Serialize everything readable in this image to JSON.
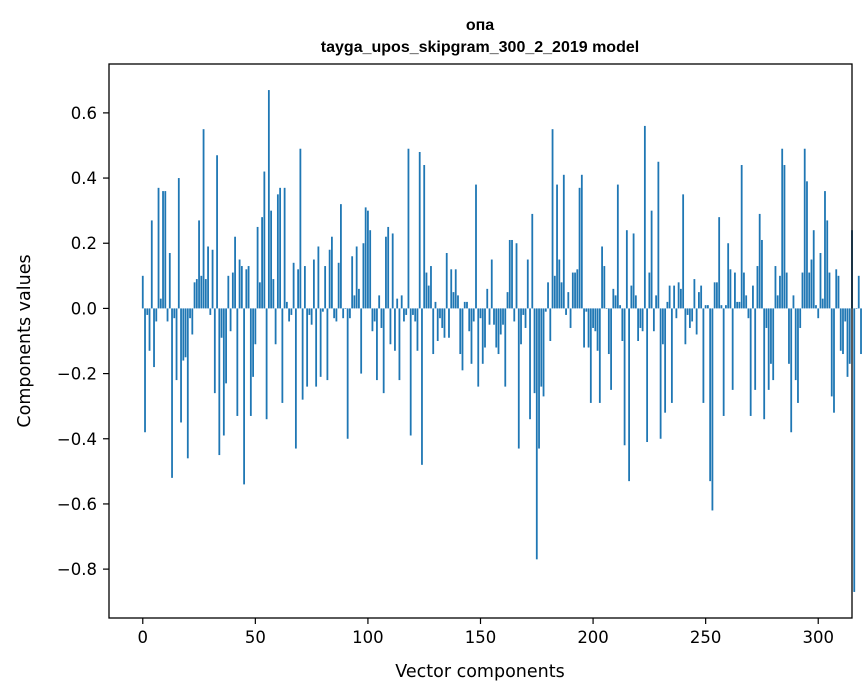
{
  "chart_data": {
    "type": "bar",
    "title": "опа",
    "subtitle": "tayga_upos_skipgram_300_2_2019 model",
    "xlabel": "Vector components",
    "ylabel": "Components values",
    "xlim": [
      -15,
      315
    ],
    "ylim": [
      -0.95,
      0.75
    ],
    "xticks": [
      0,
      50,
      100,
      150,
      200,
      250,
      300
    ],
    "xtick_labels": [
      "0",
      "50",
      "100",
      "150",
      "200",
      "250",
      "300"
    ],
    "yticks": [
      -0.8,
      -0.6,
      -0.4,
      -0.2,
      0.0,
      0.2,
      0.4,
      0.6
    ],
    "ytick_labels": [
      "−0.8",
      "−0.6",
      "−0.4",
      "−0.2",
      "0.0",
      "0.2",
      "0.4",
      "0.6"
    ],
    "grid": false,
    "bar_color": "#1f77b4",
    "series": [
      {
        "values": [
          0.1,
          -0.38,
          -0.02,
          -0.13,
          0.27,
          -0.18,
          -0.04,
          0.37,
          0.03,
          0.36,
          0.36,
          -0.04,
          0.17,
          -0.52,
          -0.03,
          -0.22,
          0.4,
          -0.35,
          -0.16,
          -0.15,
          -0.46,
          -0.03,
          -0.08,
          0.08,
          0.09,
          0.27,
          0.1,
          0.55,
          0.09,
          0.19,
          -0.02,
          0.18,
          -0.26,
          0.47,
          -0.45,
          -0.09,
          -0.39,
          -0.23,
          0.1,
          -0.07,
          0.11,
          0.22,
          -0.33,
          0.15,
          0.13,
          -0.54,
          0.12,
          0.13,
          -0.33,
          -0.21,
          -0.11,
          0.25,
          0.08,
          0.28,
          0.42,
          -0.34,
          0.67,
          0.3,
          0.09,
          -0.11,
          0.35,
          0.37,
          -0.29,
          0.37,
          0.02,
          -0.04,
          -0.02,
          0.14,
          -0.43,
          0.12,
          0.49,
          -0.28,
          0.13,
          -0.24,
          -0.02,
          -0.05,
          0.15,
          -0.24,
          0.19,
          -0.21,
          -0.01,
          0.13,
          -0.22,
          0.18,
          0.22,
          -0.03,
          -0.04,
          0.14,
          0.32,
          -0.03,
          0.0,
          -0.4,
          -0.03,
          0.16,
          0.04,
          0.19,
          0.06,
          -0.2,
          0.2,
          0.31,
          0.3,
          0.24,
          -0.07,
          -0.04,
          -0.22,
          0.04,
          -0.06,
          -0.26,
          0.22,
          0.25,
          -0.11,
          0.23,
          -0.13,
          0.03,
          -0.22,
          0.04,
          -0.04,
          -0.02,
          0.49,
          -0.39,
          -0.02,
          -0.04,
          -0.13,
          0.48,
          -0.48,
          0.44,
          0.11,
          0.07,
          0.13,
          -0.14,
          0.02,
          -0.1,
          -0.03,
          -0.06,
          -0.09,
          0.17,
          -0.09,
          0.12,
          0.05,
          0.12,
          0.04,
          -0.14,
          -0.19,
          0.02,
          0.02,
          -0.07,
          -0.17,
          -0.04,
          0.38,
          -0.24,
          -0.03,
          -0.17,
          -0.12,
          0.06,
          -0.05,
          0.15,
          -0.05,
          -0.12,
          -0.14,
          -0.08,
          -0.05,
          -0.24,
          0.05,
          0.21,
          0.21,
          -0.04,
          0.2,
          -0.43,
          -0.11,
          -0.02,
          -0.06,
          0.15,
          -0.34,
          0.29,
          -0.26,
          -0.77,
          -0.43,
          -0.24,
          -0.27,
          -0.01,
          0.08,
          -0.1,
          0.55,
          0.1,
          0.38,
          0.15,
          0.08,
          0.41,
          -0.02,
          0.05,
          -0.06,
          0.11,
          0.11,
          0.12,
          0.37,
          0.41,
          -0.12,
          -0.01,
          -0.12,
          -0.29,
          -0.06,
          -0.07,
          -0.13,
          -0.29,
          0.19,
          0.13,
          0.0,
          -0.14,
          -0.25,
          0.06,
          0.04,
          0.38,
          0.01,
          -0.1,
          -0.42,
          0.24,
          -0.53,
          0.07,
          0.23,
          0.04,
          -0.1,
          -0.06,
          -0.07,
          0.56,
          -0.41,
          0.11,
          0.3,
          -0.07,
          0.04,
          0.45,
          -0.4,
          -0.11,
          -0.32,
          0.02,
          0.07,
          -0.29,
          0.07,
          -0.03,
          0.08,
          0.06,
          0.35,
          -0.11,
          -0.02,
          -0.06,
          -0.04,
          0.09,
          -0.08,
          0.05,
          0.07,
          -0.29,
          0.01,
          0.01,
          -0.53,
          -0.62,
          0.08,
          0.08,
          0.28,
          0.01,
          -0.33,
          0.01,
          0.2,
          0.12,
          -0.25,
          0.11,
          0.02,
          0.02,
          0.44,
          0.11,
          0.04,
          -0.03,
          -0.33,
          0.07,
          -0.25,
          0.13,
          0.29,
          0.21,
          -0.34,
          -0.06,
          -0.25,
          -0.17,
          -0.22,
          0.13,
          0.04,
          0.1,
          0.49,
          0.44,
          0.11,
          -0.17,
          -0.38,
          0.04,
          -0.22,
          -0.29,
          -0.06,
          0.11,
          0.49,
          0.39,
          0.11,
          0.15,
          0.24,
          0.01,
          -0.03,
          0.17,
          0.03,
          0.36,
          0.27,
          0.11,
          -0.27,
          -0.32,
          0.12,
          0.1,
          -0.13,
          -0.14,
          -0.04,
          -0.21,
          -0.17,
          0.24,
          -0.87,
          0.0,
          0.1,
          -0.14
        ]
      }
    ]
  }
}
